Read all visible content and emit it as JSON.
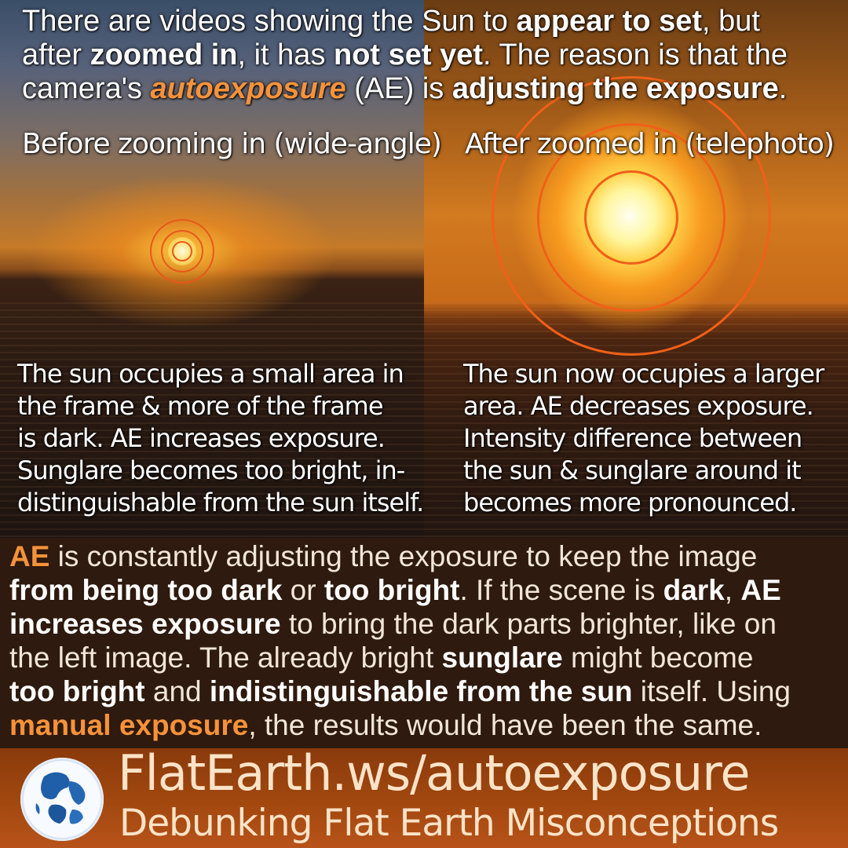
{
  "headline": {
    "l1_a": "There are videos showing the Sun to ",
    "l1_b": "appear to set",
    "l1_c": ", but",
    "l2_a": "after ",
    "l2_b": "zoomed in",
    "l2_c": ", it has ",
    "l2_d": "not set yet",
    "l2_e": ". The reason is that the",
    "l3_a": "camera's ",
    "l3_b": "autoexposure",
    "l3_c": " (AE) is ",
    "l3_d": "adjusting the exposure",
    "l3_e": "."
  },
  "panels": {
    "left": {
      "label": "Before zooming in (wide-angle)",
      "desc": [
        "The sun occupies a small area in",
        "the frame & more of the frame",
        "is dark. AE increases exposure.",
        "Sunglare becomes too bright, in-",
        "distinguishable from the sun itself."
      ]
    },
    "right": {
      "label": "After zoomed in (telephoto)",
      "desc": [
        "The sun now occupies a larger",
        "area. AE decreases exposure.",
        "Intensity difference between",
        "the sun & sunglare around it",
        "becomes more pronounced."
      ]
    }
  },
  "explanation": {
    "l1_a": "AE",
    "l1_b": " is constantly adjusting the exposure to keep the image",
    "l2_a": "from being too dark",
    "l2_b": " or ",
    "l2_c": "too bright",
    "l2_d": ". If the scene is ",
    "l2_e": "dark",
    "l2_f": ", ",
    "l2_g": "AE",
    "l3_a": "increases exposure",
    "l3_b": " to bring the dark parts brighter, like on",
    "l4_a": "the left image. The already bright ",
    "l4_b": "sunglare",
    "l4_c": " might become",
    "l5_a": "too bright",
    "l5_b": " and ",
    "l5_c": "indistinguishable from the sun",
    "l5_d": " itself. Using",
    "l6_a": "manual exposure",
    "l6_b": ", the results would have been the same."
  },
  "footer": {
    "url": "FlatEarth.ws/autoexposure",
    "tagline": "Debunking Flat Earth Misconceptions",
    "logo_icon": "globe-icon"
  },
  "colors": {
    "accent": "#f7923a",
    "ring": "#e8581c",
    "footer_bg": "#a2480f",
    "explain_bg": "#2e1a0e"
  }
}
